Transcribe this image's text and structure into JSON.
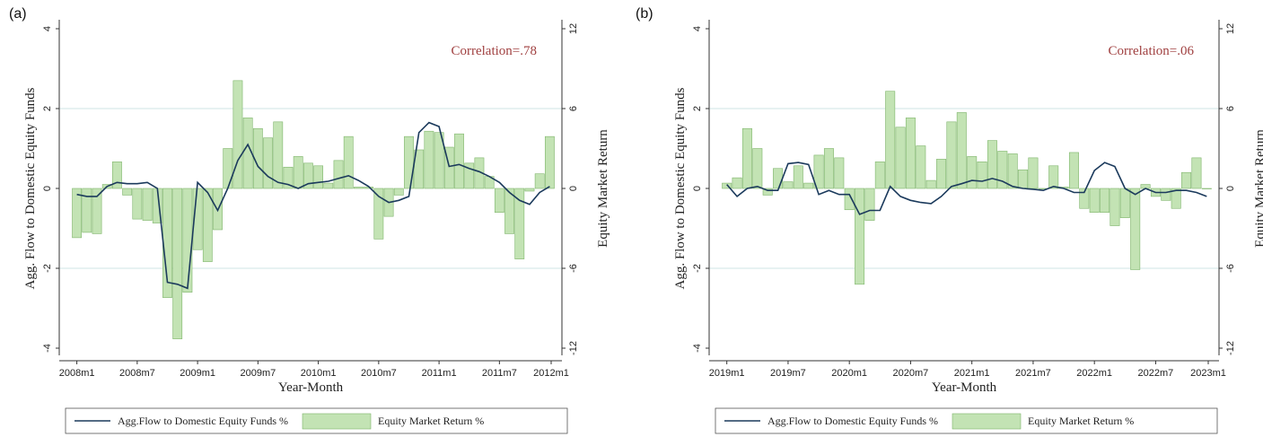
{
  "chart_data": [
    {
      "type": "bar+line",
      "panel_label": "(a)",
      "annotation": "Correlation=.78",
      "xlabel": "Year-Month",
      "ylabel": "Agg. Flow to Domestic Equity Funds",
      "ylabel_right": "Equity Market Return",
      "ylim": [
        -4,
        4
      ],
      "ylim_right": [
        -12,
        12
      ],
      "yticks": [
        "-4",
        "-2",
        "0",
        "2",
        "4"
      ],
      "yticks_right": [
        "-12",
        "-6",
        "0",
        "6",
        "12"
      ],
      "xticks": [
        "2008m1",
        "2008m7",
        "2009m1",
        "2009m7",
        "2010m1",
        "2010m7",
        "2011m1",
        "2011m7",
        "2012m1"
      ],
      "xtick_index": [
        0,
        6,
        12,
        18,
        24,
        30,
        36,
        42,
        48
      ],
      "n_points": 48,
      "grid": true,
      "legend": {
        "position": "bottom",
        "line": "Agg.Flow to Domestic Equity Funds %",
        "bar": "Equity Market Return %"
      },
      "colors": {
        "bar_fill": "#c3e3b4",
        "bar_edge": "#7fb56b",
        "line": "#1b3a5c",
        "annotation": "#a04040"
      },
      "bars": [
        -3.7,
        -3.3,
        -3.4,
        0.3,
        2.0,
        -0.5,
        -2.3,
        -2.4,
        -2.6,
        -8.2,
        -11.3,
        -7.8,
        -4.6,
        -5.5,
        -3.1,
        3.0,
        8.1,
        5.3,
        4.5,
        3.8,
        5.0,
        1.6,
        2.4,
        1.9,
        1.7,
        0.4,
        2.1,
        3.9,
        0.1,
        0.1,
        -3.8,
        -2.1,
        -0.5,
        3.9,
        2.9,
        4.3,
        4.2,
        3.1,
        4.1,
        1.9,
        2.3,
        0.9,
        -1.8,
        -3.4,
        -5.3,
        -0.2,
        1.1,
        3.9
      ],
      "line": [
        -0.15,
        -0.2,
        -0.2,
        0.05,
        0.15,
        0.12,
        0.12,
        0.15,
        0.0,
        -2.35,
        -2.4,
        -2.5,
        0.15,
        -0.1,
        -0.55,
        0.0,
        0.7,
        1.1,
        0.55,
        0.3,
        0.15,
        0.1,
        0.0,
        0.12,
        0.15,
        0.18,
        0.25,
        0.32,
        0.2,
        0.05,
        -0.2,
        -0.35,
        -0.3,
        -0.2,
        1.4,
        1.65,
        1.55,
        0.55,
        0.6,
        0.5,
        0.42,
        0.3,
        0.15,
        -0.1,
        -0.3,
        -0.4,
        -0.1,
        0.05
      ]
    },
    {
      "type": "bar+line",
      "panel_label": "(b)",
      "annotation": "Correlation=.06",
      "xlabel": "Year-Month",
      "ylabel": "Agg. Flow to Domestic Equity Funds",
      "ylabel_right": "Equity Market Return",
      "ylim": [
        -4,
        4
      ],
      "ylim_right": [
        -12,
        12
      ],
      "yticks": [
        "-4",
        "-2",
        "0",
        "2",
        "4"
      ],
      "yticks_right": [
        "-12",
        "-6",
        "0",
        "6",
        "12"
      ],
      "xticks": [
        "2019m1",
        "2019m7",
        "2020m1",
        "2020m7",
        "2021m1",
        "2021m7",
        "2022m1",
        "2022m7",
        "2023m1"
      ],
      "xtick_index": [
        0,
        6,
        12,
        18,
        24,
        30,
        36,
        42,
        48
      ],
      "n_points": 48,
      "grid": true,
      "legend": {
        "position": "bottom",
        "line": "Agg.Flow to Domestic Equity Funds %",
        "bar": "Equity Market Return %"
      },
      "colors": {
        "bar_fill": "#c3e3b4",
        "bar_edge": "#7fb56b",
        "line": "#1b3a5c",
        "annotation": "#a04040"
      },
      "bars": [
        0.4,
        0.8,
        4.5,
        3.0,
        -0.5,
        1.5,
        0.5,
        1.7,
        0.4,
        2.5,
        3.0,
        2.3,
        -1.6,
        -7.2,
        -2.4,
        2.0,
        7.3,
        4.6,
        5.3,
        3.2,
        0.6,
        2.2,
        5.0,
        5.7,
        2.4,
        2.0,
        3.6,
        2.8,
        2.6,
        1.4,
        2.3,
        0.0,
        1.7,
        0.1,
        2.7,
        -1.5,
        -1.8,
        -1.8,
        -2.8,
        -2.2,
        -6.1,
        0.3,
        -0.6,
        -0.9,
        -1.5,
        1.2,
        2.3,
        0.0
      ],
      "line": [
        0.1,
        -0.2,
        0.0,
        0.05,
        -0.05,
        -0.05,
        0.62,
        0.65,
        0.6,
        -0.15,
        -0.05,
        -0.15,
        -0.15,
        -0.65,
        -0.55,
        -0.55,
        0.05,
        -0.2,
        -0.3,
        -0.35,
        -0.38,
        -0.2,
        0.05,
        0.12,
        0.2,
        0.18,
        0.25,
        0.18,
        0.05,
        0.0,
        -0.02,
        -0.05,
        0.05,
        0.0,
        -0.1,
        -0.1,
        0.45,
        0.65,
        0.55,
        0.0,
        -0.15,
        0.0,
        -0.1,
        -0.1,
        -0.05,
        -0.05,
        -0.1,
        -0.2
      ]
    }
  ]
}
